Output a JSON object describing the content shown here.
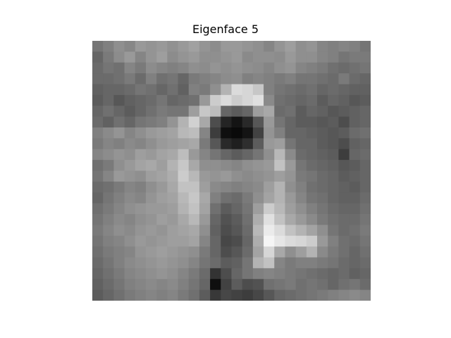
{
  "chart_data": {
    "type": "heatmap",
    "title": "Eigenface 5",
    "colormap": "gray",
    "axes_visible": false,
    "rows": 24,
    "cols": 26,
    "values": [
      [
        0.46,
        0.5,
        0.56,
        0.53,
        0.6,
        0.58,
        0.6,
        0.57,
        0.6,
        0.63,
        0.58,
        0.55,
        0.6,
        0.6,
        0.58,
        0.56,
        0.52,
        0.58,
        0.62,
        0.56,
        0.58,
        0.52,
        0.5,
        0.52,
        0.5,
        0.46
      ],
      [
        0.4,
        0.48,
        0.55,
        0.6,
        0.52,
        0.58,
        0.62,
        0.55,
        0.58,
        0.6,
        0.56,
        0.56,
        0.58,
        0.6,
        0.54,
        0.56,
        0.56,
        0.55,
        0.6,
        0.56,
        0.56,
        0.52,
        0.5,
        0.46,
        0.48,
        0.48
      ],
      [
        0.42,
        0.46,
        0.44,
        0.52,
        0.48,
        0.55,
        0.52,
        0.5,
        0.52,
        0.56,
        0.55,
        0.58,
        0.56,
        0.58,
        0.56,
        0.55,
        0.52,
        0.56,
        0.58,
        0.52,
        0.5,
        0.48,
        0.44,
        0.42,
        0.44,
        0.46
      ],
      [
        0.42,
        0.42,
        0.44,
        0.48,
        0.42,
        0.5,
        0.44,
        0.46,
        0.4,
        0.48,
        0.5,
        0.52,
        0.55,
        0.56,
        0.5,
        0.52,
        0.5,
        0.48,
        0.5,
        0.46,
        0.46,
        0.44,
        0.42,
        0.48,
        0.42,
        0.4
      ],
      [
        0.38,
        0.4,
        0.4,
        0.42,
        0.46,
        0.44,
        0.4,
        0.44,
        0.38,
        0.5,
        0.48,
        0.56,
        0.7,
        0.86,
        0.84,
        0.78,
        0.5,
        0.46,
        0.44,
        0.42,
        0.44,
        0.4,
        0.42,
        0.4,
        0.38,
        0.38
      ],
      [
        0.36,
        0.4,
        0.34,
        0.38,
        0.4,
        0.42,
        0.46,
        0.4,
        0.42,
        0.44,
        0.6,
        0.8,
        0.86,
        0.8,
        0.84,
        0.88,
        0.54,
        0.44,
        0.42,
        0.4,
        0.42,
        0.36,
        0.4,
        0.38,
        0.34,
        0.36
      ],
      [
        0.4,
        0.44,
        0.4,
        0.36,
        0.4,
        0.44,
        0.48,
        0.46,
        0.46,
        0.62,
        0.78,
        0.74,
        0.4,
        0.36,
        0.4,
        0.62,
        0.66,
        0.42,
        0.44,
        0.36,
        0.4,
        0.38,
        0.34,
        0.36,
        0.38,
        0.4
      ],
      [
        0.42,
        0.38,
        0.44,
        0.4,
        0.46,
        0.48,
        0.5,
        0.58,
        0.7,
        0.82,
        0.66,
        0.3,
        0.14,
        0.08,
        0.16,
        0.34,
        0.6,
        0.46,
        0.4,
        0.36,
        0.36,
        0.34,
        0.36,
        0.3,
        0.38,
        0.4
      ],
      [
        0.5,
        0.54,
        0.58,
        0.52,
        0.56,
        0.6,
        0.62,
        0.64,
        0.72,
        0.74,
        0.52,
        0.24,
        0.06,
        0.04,
        0.08,
        0.26,
        0.58,
        0.5,
        0.4,
        0.4,
        0.38,
        0.36,
        0.34,
        0.36,
        0.42,
        0.44
      ],
      [
        0.48,
        0.52,
        0.5,
        0.54,
        0.52,
        0.56,
        0.6,
        0.62,
        0.64,
        0.66,
        0.48,
        0.34,
        0.16,
        0.12,
        0.18,
        0.36,
        0.6,
        0.62,
        0.46,
        0.4,
        0.4,
        0.36,
        0.34,
        0.3,
        0.38,
        0.4
      ],
      [
        0.52,
        0.55,
        0.58,
        0.56,
        0.62,
        0.6,
        0.64,
        0.66,
        0.74,
        0.6,
        0.52,
        0.46,
        0.4,
        0.36,
        0.4,
        0.46,
        0.56,
        0.72,
        0.54,
        0.42,
        0.4,
        0.38,
        0.36,
        0.24,
        0.4,
        0.42
      ],
      [
        0.44,
        0.48,
        0.56,
        0.6,
        0.64,
        0.66,
        0.62,
        0.7,
        0.78,
        0.66,
        0.56,
        0.56,
        0.54,
        0.52,
        0.56,
        0.58,
        0.6,
        0.76,
        0.6,
        0.46,
        0.42,
        0.4,
        0.38,
        0.34,
        0.36,
        0.4
      ],
      [
        0.46,
        0.52,
        0.6,
        0.58,
        0.56,
        0.62,
        0.64,
        0.68,
        0.8,
        0.72,
        0.6,
        0.58,
        0.6,
        0.56,
        0.54,
        0.56,
        0.58,
        0.62,
        0.58,
        0.48,
        0.46,
        0.42,
        0.4,
        0.36,
        0.38,
        0.4
      ],
      [
        0.42,
        0.44,
        0.48,
        0.52,
        0.5,
        0.56,
        0.6,
        0.66,
        0.76,
        0.76,
        0.62,
        0.54,
        0.52,
        0.5,
        0.52,
        0.54,
        0.62,
        0.7,
        0.56,
        0.5,
        0.44,
        0.42,
        0.4,
        0.38,
        0.36,
        0.4
      ],
      [
        0.4,
        0.46,
        0.5,
        0.54,
        0.52,
        0.58,
        0.62,
        0.64,
        0.72,
        0.78,
        0.66,
        0.5,
        0.44,
        0.42,
        0.48,
        0.56,
        0.64,
        0.7,
        0.6,
        0.52,
        0.46,
        0.44,
        0.4,
        0.38,
        0.38,
        0.42
      ],
      [
        0.44,
        0.48,
        0.52,
        0.56,
        0.58,
        0.6,
        0.6,
        0.62,
        0.7,
        0.76,
        0.64,
        0.44,
        0.36,
        0.4,
        0.46,
        0.62,
        0.8,
        0.72,
        0.62,
        0.56,
        0.5,
        0.46,
        0.42,
        0.4,
        0.4,
        0.44
      ],
      [
        0.46,
        0.5,
        0.54,
        0.52,
        0.56,
        0.58,
        0.62,
        0.6,
        0.66,
        0.72,
        0.6,
        0.4,
        0.32,
        0.36,
        0.44,
        0.68,
        0.88,
        0.76,
        0.66,
        0.6,
        0.54,
        0.48,
        0.44,
        0.42,
        0.42,
        0.46
      ],
      [
        0.48,
        0.52,
        0.56,
        0.54,
        0.58,
        0.6,
        0.58,
        0.62,
        0.64,
        0.66,
        0.56,
        0.38,
        0.3,
        0.34,
        0.42,
        0.72,
        0.92,
        0.86,
        0.76,
        0.7,
        0.64,
        0.56,
        0.46,
        0.42,
        0.44,
        0.48
      ],
      [
        0.46,
        0.5,
        0.52,
        0.56,
        0.6,
        0.58,
        0.6,
        0.62,
        0.62,
        0.64,
        0.52,
        0.4,
        0.28,
        0.3,
        0.4,
        0.68,
        0.96,
        0.9,
        0.86,
        0.84,
        0.8,
        0.6,
        0.5,
        0.44,
        0.42,
        0.46
      ],
      [
        0.44,
        0.48,
        0.5,
        0.52,
        0.58,
        0.6,
        0.62,
        0.6,
        0.58,
        0.56,
        0.48,
        0.4,
        0.3,
        0.34,
        0.42,
        0.64,
        0.84,
        0.66,
        0.56,
        0.62,
        0.7,
        0.54,
        0.48,
        0.44,
        0.4,
        0.44
      ],
      [
        0.42,
        0.46,
        0.5,
        0.54,
        0.56,
        0.58,
        0.6,
        0.58,
        0.56,
        0.52,
        0.46,
        0.42,
        0.36,
        0.38,
        0.46,
        0.7,
        0.76,
        0.52,
        0.48,
        0.5,
        0.5,
        0.48,
        0.46,
        0.42,
        0.4,
        0.42
      ],
      [
        0.4,
        0.44,
        0.48,
        0.52,
        0.54,
        0.56,
        0.58,
        0.56,
        0.52,
        0.48,
        0.42,
        0.2,
        0.3,
        0.4,
        0.46,
        0.5,
        0.52,
        0.5,
        0.48,
        0.46,
        0.44,
        0.42,
        0.4,
        0.42,
        0.38,
        0.4
      ],
      [
        0.38,
        0.42,
        0.46,
        0.5,
        0.52,
        0.54,
        0.52,
        0.54,
        0.5,
        0.46,
        0.4,
        0.06,
        0.26,
        0.36,
        0.3,
        0.32,
        0.44,
        0.46,
        0.48,
        0.44,
        0.46,
        0.44,
        0.4,
        0.44,
        0.46,
        0.42
      ],
      [
        0.36,
        0.4,
        0.44,
        0.48,
        0.5,
        0.52,
        0.5,
        0.52,
        0.48,
        0.44,
        0.36,
        0.22,
        0.28,
        0.26,
        0.24,
        0.28,
        0.34,
        0.4,
        0.42,
        0.44,
        0.46,
        0.48,
        0.5,
        0.52,
        0.54,
        0.52
      ]
    ]
  }
}
